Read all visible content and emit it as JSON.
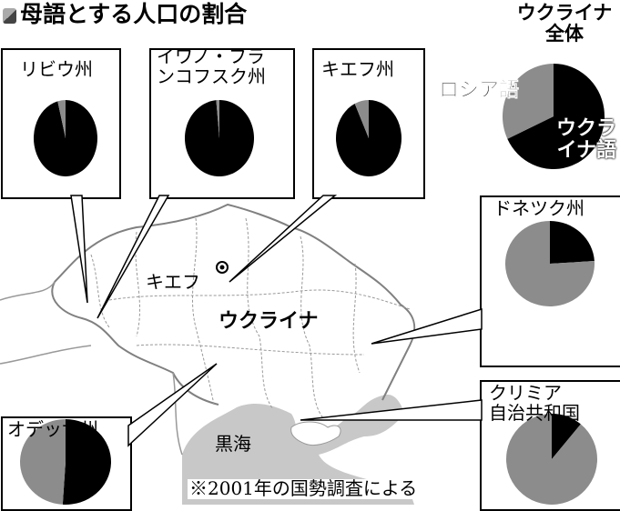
{
  "title": "母語とする人口の割合",
  "title_icon": "cube-icon",
  "footnote": "※2001年の国勢調査による",
  "map": {
    "country_label": "ウクライナ",
    "capital_label": "キエフ",
    "sea_label": "黒海",
    "capital_icon": "capital-marker-icon"
  },
  "colors": {
    "ukrainian": "#000000",
    "russian": "#8c8c8c",
    "sea": "#c8c8c8",
    "border": "#808080"
  },
  "chart_data": [
    {
      "type": "pie",
      "title": "ウクライナ全体",
      "title_lines": [
        "ウクライナ",
        "全体"
      ],
      "labels": [
        "ウクライナ語",
        "ロシア語"
      ],
      "label_lines": {
        "ukr": [
          "ウクラ",
          "イナ語"
        ],
        "rus": "ロシア語"
      },
      "values": [
        68,
        32
      ]
    },
    {
      "type": "pie",
      "title": "リビウ州",
      "labels": [
        "ウクライナ語",
        "ロシア語"
      ],
      "values": [
        96,
        4
      ]
    },
    {
      "type": "pie",
      "title": "イワノ・フランコフスク州",
      "title_lines": [
        "イワノ・フラ",
        "ンコフスク州"
      ],
      "labels": [
        "ウクライナ語",
        "ロシア語"
      ],
      "values": [
        98.5,
        1.5
      ]
    },
    {
      "type": "pie",
      "title": "キエフ州",
      "labels": [
        "ウクライナ語",
        "ロシア語"
      ],
      "values": [
        93,
        7
      ]
    },
    {
      "type": "pie",
      "title": "ドネツク州",
      "labels": [
        "ウクライナ語",
        "ロシア語"
      ],
      "values": [
        24,
        76
      ]
    },
    {
      "type": "pie",
      "title": "オデッサ州",
      "labels": [
        "ウクライナ語",
        "ロシア語"
      ],
      "values": [
        51,
        49
      ]
    },
    {
      "type": "pie",
      "title": "クリミア自治共和国",
      "title_lines": [
        "クリミア",
        "自治共和国"
      ],
      "labels": [
        "ウクライナ語",
        "ロシア語"
      ],
      "values": [
        11,
        89
      ]
    }
  ]
}
